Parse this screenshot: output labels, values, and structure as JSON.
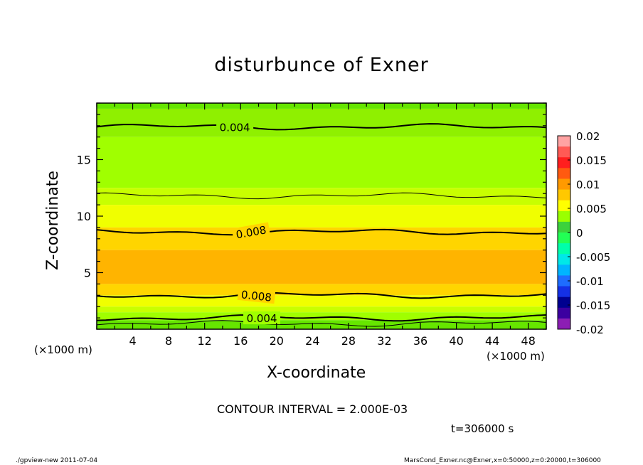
{
  "chart_data": {
    "type": "heatmap",
    "title": "disturbunce of Exner",
    "xlabel": "X-coordinate",
    "ylabel": "Z-coordinate",
    "x_unit_label": "(×1000 m)",
    "x_ticks": [
      4,
      8,
      12,
      16,
      20,
      24,
      28,
      32,
      36,
      40,
      44,
      48
    ],
    "y_ticks": [
      5,
      10,
      15
    ],
    "xlim": [
      0,
      50
    ],
    "ylim": [
      0,
      20
    ],
    "contour_interval_text": "CONTOUR INTERVAL = 2.000E-03",
    "time_text": "t=306000 s",
    "contour_labels": [
      {
        "text": "0.004",
        "x": 15.2,
        "z": 17.9,
        "rot": 0
      },
      {
        "text": "0.008",
        "x": 17.0,
        "z": 8.6,
        "rot": -10
      },
      {
        "text": "0.008",
        "x": 17.6,
        "z": 3.0,
        "rot": 6
      },
      {
        "text": "0.004",
        "x": 18.2,
        "z": 1.0,
        "rot": 0
      }
    ],
    "colorbar": {
      "ticks": [
        "0.02",
        "0.015",
        "0.01",
        "0.005",
        "0",
        "-0.005",
        "-0.01",
        "-0.015",
        "-0.02"
      ],
      "colors": [
        "#ffa3a3",
        "#ff5a55",
        "#ff1e1e",
        "#ff5a10",
        "#ff9a00",
        "#ffc800",
        "#ffff00",
        "#9aff00",
        "#3cd23c",
        "#22ff55",
        "#00ffaa",
        "#00e8e8",
        "#00b4ff",
        "#1e6cff",
        "#1430e6",
        "#000090",
        "#3c00a0",
        "#8c1eb4"
      ]
    },
    "layers": [
      {
        "z0": 19.5,
        "z1": 20.0,
        "value": 0.003,
        "color": "#66e600"
      },
      {
        "z0": 17.0,
        "z1": 19.5,
        "value": 0.004,
        "color": "#8ff000"
      },
      {
        "z0": 12.5,
        "z1": 17.0,
        "value": 0.005,
        "color": "#a0ff00"
      },
      {
        "z0": 11.0,
        "z1": 12.5,
        "value": 0.006,
        "color": "#c8ff00"
      },
      {
        "z0": 9.0,
        "z1": 11.0,
        "value": 0.007,
        "color": "#f0ff00"
      },
      {
        "z0": 7.0,
        "z1": 9.0,
        "value": 0.008,
        "color": "#ffd500"
      },
      {
        "z0": 4.0,
        "z1": 7.0,
        "value": 0.009,
        "color": "#ffb400"
      },
      {
        "z0": 3.0,
        "z1": 4.0,
        "value": 0.008,
        "color": "#ffd500"
      },
      {
        "z0": 2.0,
        "z1": 3.0,
        "value": 0.007,
        "color": "#f0ff00"
      },
      {
        "z0": 1.5,
        "z1": 2.0,
        "value": 0.006,
        "color": "#c8ff00"
      },
      {
        "z0": 0.8,
        "z1": 1.5,
        "value": 0.005,
        "color": "#a0ff00"
      },
      {
        "z0": 0.0,
        "z1": 0.8,
        "value": 0.003,
        "color": "#66e600"
      }
    ],
    "contour_lines": [
      17.9,
      11.8,
      8.6,
      3.0,
      1.0,
      0.5
    ]
  },
  "footer": {
    "left": "./gpview-new   2011-07-04",
    "right": "MarsCond_Exner.nc@Exner,x=0:50000,z=0:20000,t=306000"
  }
}
